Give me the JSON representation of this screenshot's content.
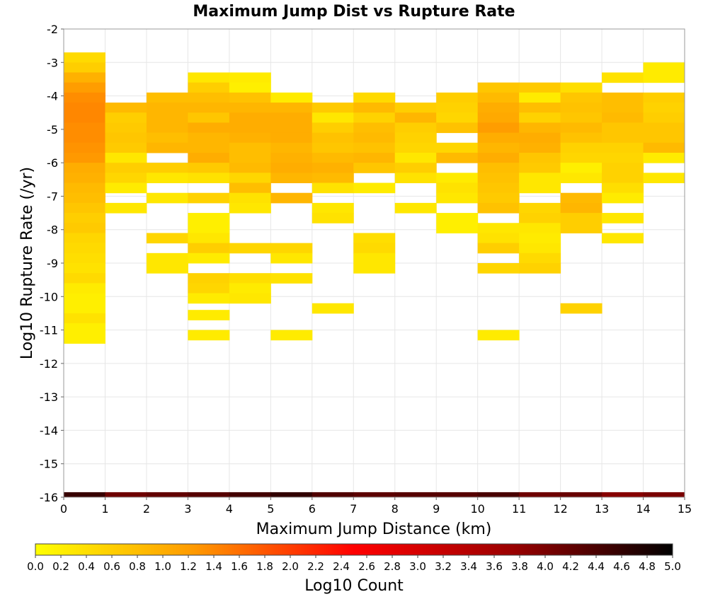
{
  "chart_data": {
    "type": "heatmap",
    "title": "Maximum Jump Dist vs Rupture Rate",
    "xlabel": "Maximum Jump Distance (km)",
    "ylabel": "Log10 Rupture Rate (/yr)",
    "xlim": [
      0,
      15
    ],
    "ylim": [
      -16,
      -2
    ],
    "x_ticks": [
      "0",
      "1",
      "2",
      "3",
      "4",
      "5",
      "6",
      "7",
      "8",
      "9",
      "10",
      "11",
      "12",
      "13",
      "14",
      "15"
    ],
    "y_ticks": [
      "-2",
      "-3",
      "-4",
      "-5",
      "-6",
      "-7",
      "-8",
      "-9",
      "-10",
      "-11",
      "-12",
      "-13",
      "-14",
      "-15",
      "-16"
    ],
    "grid": true,
    "cell_width": 1,
    "cell_height": 0.3,
    "colorbar": {
      "label": "Log10 Count",
      "range": [
        0,
        5
      ],
      "colors": [
        "#ffff00",
        "#ff9900",
        "#ff0000",
        "#990000",
        "#000000"
      ],
      "ticks": [
        "0.0",
        "0.2",
        "0.4",
        "0.6",
        "0.8",
        "1.0",
        "1.2",
        "1.4",
        "1.6",
        "1.8",
        "2.0",
        "2.2",
        "2.4",
        "2.6",
        "2.8",
        "3.0",
        "3.2",
        "3.4",
        "3.6",
        "3.8",
        "4.0",
        "4.2",
        "4.4",
        "4.6",
        "4.8",
        "5.0"
      ],
      "placement": "bottom"
    },
    "cells_note": "each cell: [x_bin_start, log10_rate_bin_top, log10_count]",
    "cells": [
      [
        0,
        -2.7,
        0.45
      ],
      [
        0,
        -3.0,
        0.6
      ],
      [
        0,
        -3.3,
        0.95
      ],
      [
        0,
        -3.6,
        1.2
      ],
      [
        0,
        -3.9,
        1.35
      ],
      [
        0,
        -4.2,
        1.4
      ],
      [
        0,
        -4.5,
        1.4
      ],
      [
        0,
        -4.8,
        1.35
      ],
      [
        0,
        -5.1,
        1.35
      ],
      [
        0,
        -5.4,
        1.3
      ],
      [
        0,
        -5.7,
        1.25
      ],
      [
        0,
        -6.0,
        1.0
      ],
      [
        0,
        -6.3,
        0.95
      ],
      [
        0,
        -6.6,
        0.85
      ],
      [
        0,
        -6.9,
        0.8
      ],
      [
        0,
        -7.2,
        0.7
      ],
      [
        0,
        -7.5,
        0.6
      ],
      [
        0,
        -7.8,
        0.65
      ],
      [
        0,
        -8.1,
        0.5
      ],
      [
        0,
        -8.4,
        0.45
      ],
      [
        0,
        -8.7,
        0.4
      ],
      [
        0,
        -9.0,
        0.35
      ],
      [
        0,
        -9.3,
        0.45
      ],
      [
        0,
        -9.6,
        0.25
      ],
      [
        0,
        -9.9,
        0.2
      ],
      [
        0,
        -10.2,
        0.2
      ],
      [
        0,
        -10.5,
        0.35
      ],
      [
        0,
        -10.8,
        0.2
      ],
      [
        0,
        -11.1,
        0.2
      ],
      [
        1,
        -4.2,
        0.85
      ],
      [
        1,
        -4.5,
        0.6
      ],
      [
        1,
        -4.8,
        0.65
      ],
      [
        1,
        -5.1,
        0.7
      ],
      [
        1,
        -5.4,
        0.65
      ],
      [
        1,
        -5.7,
        0.3
      ],
      [
        1,
        -6.0,
        0.6
      ],
      [
        1,
        -6.3,
        0.5
      ],
      [
        1,
        -6.6,
        0.25
      ],
      [
        1,
        -7.2,
        0.3
      ],
      [
        2,
        -3.9,
        0.8
      ],
      [
        2,
        -4.2,
        0.9
      ],
      [
        2,
        -4.5,
        0.9
      ],
      [
        2,
        -4.8,
        0.9
      ],
      [
        2,
        -5.1,
        0.8
      ],
      [
        2,
        -5.4,
        0.9
      ],
      [
        2,
        -6.0,
        0.6
      ],
      [
        2,
        -6.3,
        0.3
      ],
      [
        2,
        -6.9,
        0.3
      ],
      [
        2,
        -8.1,
        0.5
      ],
      [
        2,
        -8.7,
        0.3
      ],
      [
        2,
        -9.0,
        0.3
      ],
      [
        3,
        -3.3,
        0.3
      ],
      [
        3,
        -3.6,
        0.6
      ],
      [
        3,
        -3.9,
        0.8
      ],
      [
        3,
        -4.2,
        0.9
      ],
      [
        3,
        -4.5,
        0.7
      ],
      [
        3,
        -4.8,
        1.0
      ],
      [
        3,
        -5.1,
        0.9
      ],
      [
        3,
        -5.4,
        0.9
      ],
      [
        3,
        -5.7,
        1.0
      ],
      [
        3,
        -6.0,
        0.65
      ],
      [
        3,
        -6.3,
        0.35
      ],
      [
        3,
        -6.9,
        0.55
      ],
      [
        3,
        -7.5,
        0.2
      ],
      [
        3,
        -7.8,
        0.2
      ],
      [
        3,
        -8.1,
        0.3
      ],
      [
        3,
        -8.4,
        0.6
      ],
      [
        3,
        -8.7,
        0.25
      ],
      [
        3,
        -9.3,
        0.55
      ],
      [
        3,
        -9.6,
        0.5
      ],
      [
        3,
        -9.9,
        0.25
      ],
      [
        3,
        -10.4,
        0.25
      ],
      [
        3,
        -11.0,
        0.25
      ],
      [
        4,
        -3.3,
        0.25
      ],
      [
        4,
        -3.6,
        0.2
      ],
      [
        4,
        -3.9,
        0.75
      ],
      [
        4,
        -4.2,
        0.9
      ],
      [
        4,
        -4.5,
        1.0
      ],
      [
        4,
        -4.8,
        1.0
      ],
      [
        4,
        -5.1,
        0.95
      ],
      [
        4,
        -5.4,
        0.8
      ],
      [
        4,
        -5.7,
        0.8
      ],
      [
        4,
        -6.0,
        0.85
      ],
      [
        4,
        -6.3,
        0.5
      ],
      [
        4,
        -6.6,
        0.8
      ],
      [
        4,
        -6.9,
        0.35
      ],
      [
        4,
        -7.2,
        0.3
      ],
      [
        4,
        -8.4,
        0.5
      ],
      [
        4,
        -9.3,
        0.4
      ],
      [
        4,
        -9.6,
        0.25
      ],
      [
        4,
        -9.9,
        0.3
      ],
      [
        5,
        -3.9,
        0.25
      ],
      [
        5,
        -4.2,
        0.9
      ],
      [
        5,
        -4.5,
        1.0
      ],
      [
        5,
        -4.8,
        1.0
      ],
      [
        5,
        -5.1,
        1.0
      ],
      [
        5,
        -5.4,
        0.9
      ],
      [
        5,
        -5.7,
        0.95
      ],
      [
        5,
        -6.0,
        1.0
      ],
      [
        5,
        -6.3,
        0.9
      ],
      [
        5,
        -6.9,
        0.9
      ],
      [
        5,
        -8.4,
        0.5
      ],
      [
        5,
        -8.7,
        0.3
      ],
      [
        5,
        -9.3,
        0.35
      ],
      [
        5,
        -11.0,
        0.25
      ],
      [
        6,
        -4.2,
        0.65
      ],
      [
        6,
        -4.5,
        0.3
      ],
      [
        6,
        -4.8,
        0.6
      ],
      [
        6,
        -5.1,
        0.75
      ],
      [
        6,
        -5.4,
        0.7
      ],
      [
        6,
        -5.7,
        0.85
      ],
      [
        6,
        -6.0,
        0.95
      ],
      [
        6,
        -6.3,
        0.85
      ],
      [
        6,
        -6.6,
        0.35
      ],
      [
        6,
        -7.2,
        0.3
      ],
      [
        6,
        -7.5,
        0.35
      ],
      [
        6,
        -10.2,
        0.3
      ],
      [
        7,
        -3.9,
        0.45
      ],
      [
        7,
        -4.2,
        0.85
      ],
      [
        7,
        -4.5,
        0.55
      ],
      [
        7,
        -4.8,
        0.8
      ],
      [
        7,
        -5.1,
        0.85
      ],
      [
        7,
        -5.4,
        0.75
      ],
      [
        7,
        -5.7,
        0.9
      ],
      [
        7,
        -6.0,
        0.7
      ],
      [
        7,
        -6.6,
        0.25
      ],
      [
        7,
        -8.1,
        0.4
      ],
      [
        7,
        -8.4,
        0.45
      ],
      [
        7,
        -8.7,
        0.3
      ],
      [
        7,
        -9.0,
        0.3
      ],
      [
        8,
        -4.2,
        0.6
      ],
      [
        8,
        -4.5,
        0.9
      ],
      [
        8,
        -4.8,
        0.6
      ],
      [
        8,
        -5.1,
        0.55
      ],
      [
        8,
        -5.4,
        0.5
      ],
      [
        8,
        -5.7,
        0.3
      ],
      [
        8,
        -6.0,
        0.6
      ],
      [
        8,
        -6.3,
        0.35
      ],
      [
        8,
        -7.2,
        0.3
      ],
      [
        9,
        -3.9,
        0.6
      ],
      [
        9,
        -4.2,
        0.55
      ],
      [
        9,
        -4.5,
        0.5
      ],
      [
        9,
        -4.8,
        0.75
      ],
      [
        9,
        -5.4,
        0.5
      ],
      [
        9,
        -5.7,
        0.85
      ],
      [
        9,
        -6.3,
        0.25
      ],
      [
        9,
        -6.6,
        0.35
      ],
      [
        9,
        -6.9,
        0.3
      ],
      [
        9,
        -7.5,
        0.2
      ],
      [
        9,
        -7.8,
        0.2
      ],
      [
        10,
        -3.6,
        0.7
      ],
      [
        10,
        -3.9,
        0.85
      ],
      [
        10,
        -4.2,
        1.0
      ],
      [
        10,
        -4.5,
        1.05
      ],
      [
        10,
        -4.8,
        1.2
      ],
      [
        10,
        -5.1,
        1.0
      ],
      [
        10,
        -5.4,
        0.9
      ],
      [
        10,
        -5.7,
        1.0
      ],
      [
        10,
        -6.0,
        0.8
      ],
      [
        10,
        -6.3,
        0.75
      ],
      [
        10,
        -6.6,
        0.7
      ],
      [
        10,
        -6.9,
        0.65
      ],
      [
        10,
        -7.2,
        0.75
      ],
      [
        10,
        -7.8,
        0.3
      ],
      [
        10,
        -8.1,
        0.35
      ],
      [
        10,
        -8.4,
        0.6
      ],
      [
        10,
        -9.0,
        0.5
      ],
      [
        10,
        -11.0,
        0.25
      ],
      [
        11,
        -3.6,
        0.65
      ],
      [
        11,
        -3.9,
        0.25
      ],
      [
        11,
        -4.2,
        0.8
      ],
      [
        11,
        -4.5,
        0.55
      ],
      [
        11,
        -4.8,
        0.9
      ],
      [
        11,
        -5.1,
        1.0
      ],
      [
        11,
        -5.4,
        0.95
      ],
      [
        11,
        -5.7,
        0.7
      ],
      [
        11,
        -6.0,
        0.65
      ],
      [
        11,
        -6.3,
        0.3
      ],
      [
        11,
        -6.6,
        0.3
      ],
      [
        11,
        -7.2,
        0.5
      ],
      [
        11,
        -7.5,
        0.55
      ],
      [
        11,
        -7.8,
        0.3
      ],
      [
        11,
        -8.1,
        0.25
      ],
      [
        11,
        -8.4,
        0.3
      ],
      [
        11,
        -8.7,
        0.45
      ],
      [
        11,
        -9.0,
        0.55
      ],
      [
        12,
        -3.6,
        0.4
      ],
      [
        12,
        -3.9,
        0.7
      ],
      [
        12,
        -4.2,
        0.75
      ],
      [
        12,
        -4.5,
        0.7
      ],
      [
        12,
        -4.8,
        0.85
      ],
      [
        12,
        -5.1,
        0.75
      ],
      [
        12,
        -5.4,
        0.55
      ],
      [
        12,
        -5.7,
        0.5
      ],
      [
        12,
        -6.0,
        0.2
      ],
      [
        12,
        -6.3,
        0.3
      ],
      [
        12,
        -6.9,
        0.85
      ],
      [
        12,
        -7.2,
        0.9
      ],
      [
        12,
        -7.5,
        0.6
      ],
      [
        12,
        -7.8,
        0.6
      ],
      [
        12,
        -10.2,
        0.55
      ],
      [
        13,
        -3.3,
        0.35
      ],
      [
        13,
        -3.9,
        0.8
      ],
      [
        13,
        -4.2,
        0.8
      ],
      [
        13,
        -4.5,
        0.85
      ],
      [
        13,
        -4.8,
        0.7
      ],
      [
        13,
        -5.1,
        0.7
      ],
      [
        13,
        -5.4,
        0.55
      ],
      [
        13,
        -5.7,
        0.5
      ],
      [
        13,
        -6.0,
        0.55
      ],
      [
        13,
        -6.3,
        0.55
      ],
      [
        13,
        -6.6,
        0.4
      ],
      [
        13,
        -6.9,
        0.25
      ],
      [
        13,
        -7.5,
        0.3
      ],
      [
        13,
        -8.1,
        0.3
      ],
      [
        14,
        -3.0,
        0.25
      ],
      [
        14,
        -3.3,
        0.25
      ],
      [
        14,
        -3.9,
        0.6
      ],
      [
        14,
        -4.2,
        0.55
      ],
      [
        14,
        -4.5,
        0.6
      ],
      [
        14,
        -4.8,
        0.7
      ],
      [
        14,
        -5.1,
        0.7
      ],
      [
        14,
        -5.4,
        0.85
      ],
      [
        14,
        -5.7,
        0.25
      ],
      [
        14,
        -6.3,
        0.3
      ]
    ],
    "bottom_row_note": "cells in bin -15.85 to -16.0 for each x bin",
    "bottom_row": [
      [
        0,
        4.55
      ],
      [
        1,
        4.1
      ],
      [
        2,
        4.2
      ],
      [
        3,
        4.3
      ],
      [
        4,
        4.45
      ],
      [
        5,
        4.6
      ],
      [
        6,
        4.35
      ],
      [
        7,
        4.25
      ],
      [
        8,
        4.3
      ],
      [
        9,
        4.3
      ],
      [
        10,
        4.4
      ],
      [
        11,
        4.1
      ],
      [
        12,
        4.15
      ],
      [
        13,
        3.9
      ],
      [
        14,
        4.0
      ]
    ]
  }
}
